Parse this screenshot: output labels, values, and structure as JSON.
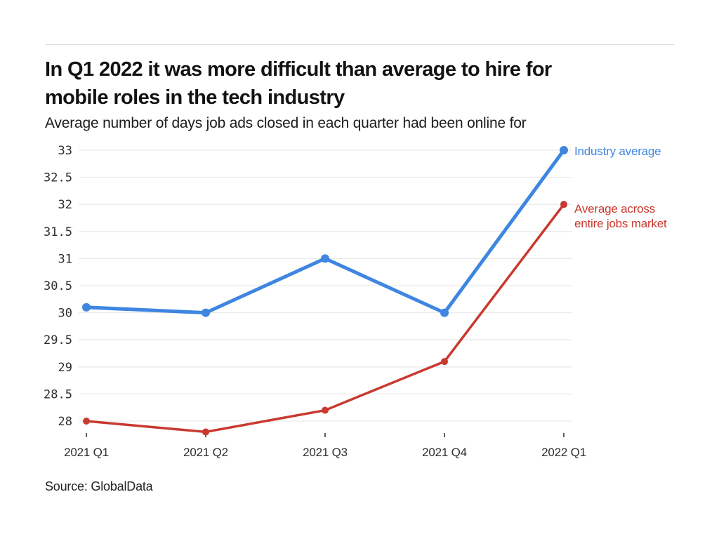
{
  "header": {
    "title_line1": "In Q1 2022 it was more difficult than average to hire for",
    "title_line2": "mobile roles in the tech industry"
  },
  "footer": {
    "source": "Source: GlobalData"
  },
  "colors": {
    "industry_blue": "#3e86e0",
    "market_red": "#c9392f",
    "grid": "#e9e9e9",
    "tick": "#3c3c3c",
    "axis_text": "#2e2e2e",
    "divider": "#dcdcdc"
  },
  "chart_data": {
    "type": "line",
    "title": "In Q1 2022 it was more difficult than average to hire for mobile roles in the tech industry",
    "subtitle": "Average number of days job ads closed in each quarter had been online for",
    "source": "Source: GlobalData",
    "categories": [
      "2021 Q1",
      "2021 Q2",
      "2021 Q3",
      "2021 Q4",
      "2022 Q1"
    ],
    "series": [
      {
        "name": "Industry average",
        "values": [
          30.1,
          30,
          31,
          30,
          33
        ],
        "color": "#3e86e0"
      },
      {
        "name": "Average across entire jobs market",
        "values": [
          28,
          27.8,
          28.2,
          29.1,
          32
        ],
        "color": "#c9392f"
      }
    ],
    "xlabel": "",
    "ylabel": "",
    "ylim": [
      28,
      33
    ],
    "ytick_step": 0.5,
    "grid": "horizontal",
    "legend_position": "right of line ends"
  }
}
